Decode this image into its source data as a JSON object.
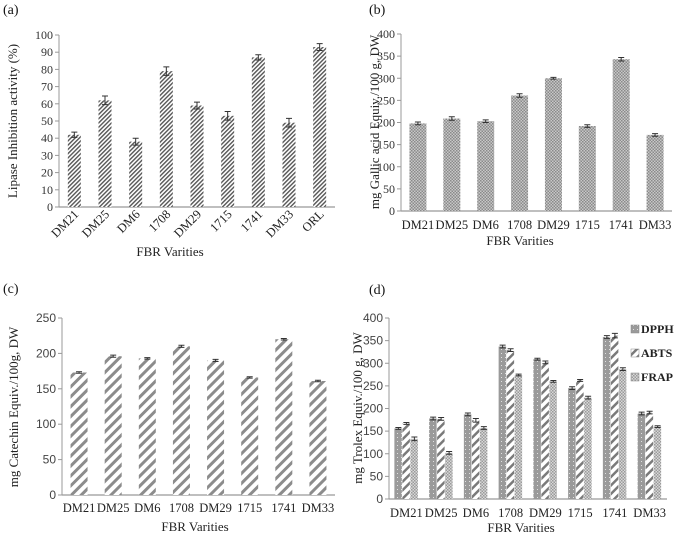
{
  "chart_data": [
    {
      "panel": "(a)",
      "type": "bar",
      "categories": [
        "DM21",
        "DM25",
        "DM6",
        "1708",
        "DM29",
        "1715",
        "1741",
        "DM33",
        "ORL"
      ],
      "values": [
        42,
        62,
        38,
        79,
        59,
        53,
        87,
        49,
        93
      ],
      "errors": [
        1.5,
        2.5,
        2,
        2.5,
        2,
        2.5,
        1.5,
        2.5,
        2
      ],
      "xlabel": "FBR Varities",
      "ylabel": "Lipase Inhibition activity (%)",
      "ylim": [
        0,
        100
      ],
      "yticks": [
        0,
        10,
        20,
        30,
        40,
        50,
        60,
        70,
        80,
        90,
        100
      ],
      "grid": false,
      "pattern": "dense diagonal hatch",
      "color": "#555555"
    },
    {
      "panel": "(b)",
      "type": "bar",
      "categories": [
        "DM21",
        "DM25",
        "DM6",
        "1708",
        "DM29",
        "1715",
        "1741",
        "DM33"
      ],
      "values": [
        198,
        209,
        203,
        261,
        300,
        192,
        343,
        172
      ],
      "errors": [
        3,
        4,
        3,
        4,
        2,
        3,
        4,
        3
      ],
      "xlabel": "FBR Varities",
      "ylabel": "mg Gallic acid Equiv./100 g, DW",
      "ylim": [
        0,
        400
      ],
      "yticks": [
        0,
        50,
        100,
        150,
        200,
        250,
        300,
        350,
        400
      ],
      "grid": false,
      "pattern": "crosshatch",
      "color": "#999999"
    },
    {
      "panel": "(c)",
      "type": "bar",
      "categories": [
        "DM21",
        "DM25",
        "DM6",
        "1708",
        "DM29",
        "1715",
        "1741",
        "DM33"
      ],
      "values": [
        173,
        196,
        193,
        210,
        190,
        166,
        220,
        161
      ],
      "errors": [
        1,
        1.5,
        1,
        1.5,
        1.5,
        1,
        1,
        1
      ],
      "xlabel": "FBR  Varities",
      "ylabel": "mg Catechin Equiv./100g, DW",
      "ylim": [
        0,
        250
      ],
      "yticks": [
        0,
        50,
        100,
        150,
        200,
        250
      ],
      "grid": false,
      "pattern": "wide diagonal stripes",
      "color": "#8c8c8c"
    },
    {
      "panel": "(d)",
      "type": "bar",
      "categories": [
        "DM21",
        "DM25",
        "DM6",
        "1708",
        "DM29",
        "1715",
        "1741",
        "DM33"
      ],
      "series": [
        {
          "name": "DPPH",
          "values": [
            156,
            178,
            187,
            337,
            309,
            245,
            358,
            189
          ],
          "errors": [
            2,
            3,
            3,
            3,
            2,
            3,
            3,
            3
          ],
          "color": "#9a9a9a"
        },
        {
          "name": "ABTS",
          "values": [
            167,
            177,
            174,
            329,
            302,
            262,
            361,
            191
          ],
          "errors": [
            2,
            3,
            4,
            3,
            3,
            2,
            5,
            3
          ],
          "color": "#7a7a7a"
        },
        {
          "name": "FRAP",
          "values": [
            133,
            102,
            157,
            274,
            260,
            224,
            287,
            160
          ],
          "errors": [
            4,
            3,
            3,
            2,
            2,
            3,
            3,
            2
          ],
          "color": "#b0b0b0"
        }
      ],
      "xlabel": "FBR Varities",
      "ylabel": "mg Trolex Equiv./100 g, DW",
      "ylim": [
        0,
        400
      ],
      "yticks": [
        0,
        50,
        100,
        150,
        200,
        250,
        300,
        350,
        400
      ],
      "legend": "top-right",
      "grid": false
    }
  ]
}
